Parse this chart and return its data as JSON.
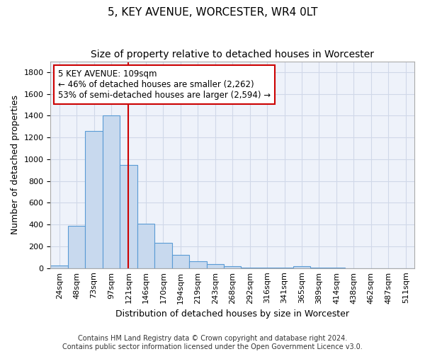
{
  "title": "5, KEY AVENUE, WORCESTER, WR4 0LT",
  "subtitle": "Size of property relative to detached houses in Worcester",
  "xlabel": "Distribution of detached houses by size in Worcester",
  "ylabel": "Number of detached properties",
  "footnote1": "Contains HM Land Registry data © Crown copyright and database right 2024.",
  "footnote2": "Contains public sector information licensed under the Open Government Licence v3.0.",
  "annotation_line1": "5 KEY AVENUE: 109sqm",
  "annotation_line2": "← 46% of detached houses are smaller (2,262)",
  "annotation_line3": "53% of semi-detached houses are larger (2,594) →",
  "bar_color": "#c8d9ee",
  "bar_edge_color": "#5a9bd5",
  "vline_color": "#cc0000",
  "grid_color": "#d0d8e8",
  "background_color": "#eef2fa",
  "categories": [
    "24sqm",
    "48sqm",
    "73sqm",
    "97sqm",
    "121sqm",
    "146sqm",
    "170sqm",
    "194sqm",
    "219sqm",
    "243sqm",
    "268sqm",
    "292sqm",
    "316sqm",
    "341sqm",
    "365sqm",
    "389sqm",
    "414sqm",
    "438sqm",
    "462sqm",
    "487sqm",
    "511sqm"
  ],
  "values": [
    25,
    390,
    1260,
    1400,
    950,
    410,
    235,
    120,
    65,
    40,
    20,
    5,
    5,
    5,
    15,
    5,
    5,
    0,
    0,
    0,
    0
  ],
  "ylim": [
    0,
    1900
  ],
  "yticks": [
    0,
    200,
    400,
    600,
    800,
    1000,
    1200,
    1400,
    1600,
    1800
  ],
  "vline_position": 4.0,
  "title_fontsize": 11,
  "subtitle_fontsize": 10,
  "tick_fontsize": 8,
  "ylabel_fontsize": 9,
  "xlabel_fontsize": 9,
  "footnote_fontsize": 7,
  "annotation_fontsize": 8.5
}
